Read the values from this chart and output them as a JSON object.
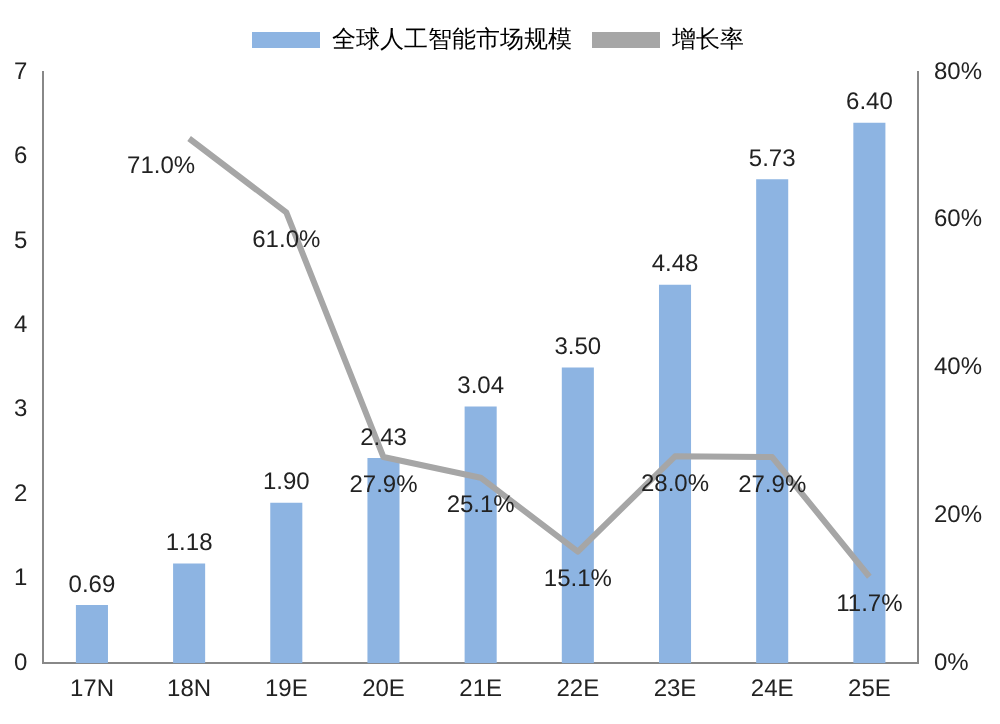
{
  "chart_data": {
    "type": "bar",
    "categories": [
      "17N",
      "18N",
      "19E",
      "20E",
      "21E",
      "22E",
      "23E",
      "24E",
      "25E"
    ],
    "series": [
      {
        "name": "全球人工智能市场规模",
        "color": "#8db4e2",
        "values": [
          0.69,
          1.18,
          1.9,
          2.43,
          3.04,
          3.5,
          4.48,
          5.73,
          6.4
        ],
        "value_labels": [
          "0.69",
          "1.18",
          "1.90",
          "2.43",
          "3.04",
          "3.50",
          "4.48",
          "5.73",
          "6.40"
        ]
      },
      {
        "name": "增长率",
        "type": "line",
        "axis": "y2",
        "color": "#a6a6a6",
        "values": [
          null,
          71.0,
          61.0,
          27.9,
          25.1,
          15.1,
          28.0,
          27.9,
          11.7
        ],
        "value_labels": [
          null,
          "71.0%",
          "61.0%",
          "27.9%",
          "25.1%",
          "15.1%",
          "28.0%",
          "27.9%",
          "11.7%"
        ]
      }
    ],
    "ylim": [
      0,
      7
    ],
    "yticks": [
      0,
      1,
      2,
      3,
      4,
      5,
      6,
      7
    ],
    "y2lim": [
      0,
      80
    ],
    "y2ticks": [
      {
        "value": 0,
        "label": "0%"
      },
      {
        "value": 20,
        "label": "20%"
      },
      {
        "value": 40,
        "label": "40%"
      },
      {
        "value": 60,
        "label": "60%"
      },
      {
        "value": 80,
        "label": "80%"
      }
    ],
    "legend": "top",
    "grid": false,
    "marker": "none",
    "line_style": "solid"
  }
}
